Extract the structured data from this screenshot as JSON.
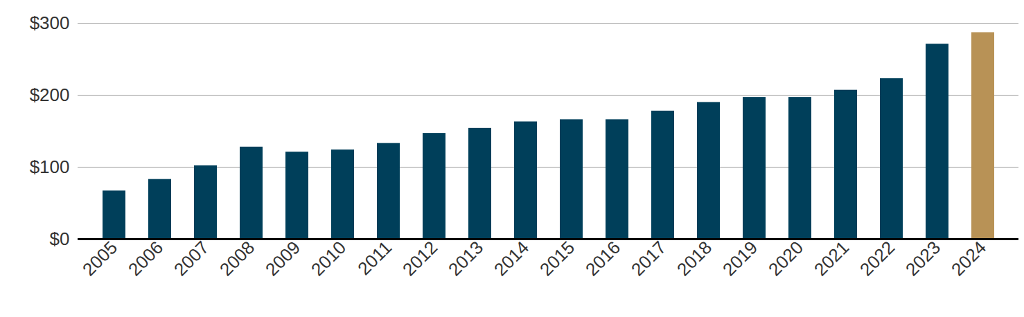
{
  "chart_data": {
    "type": "bar",
    "categories": [
      "2005",
      "2006",
      "2007",
      "2008",
      "2009",
      "2010",
      "2011",
      "2012",
      "2013",
      "2014",
      "2015",
      "2016",
      "2017",
      "2018",
      "2019",
      "2020",
      "2021",
      "2022",
      "2023",
      "2024"
    ],
    "values": [
      67,
      83,
      102,
      128,
      121,
      124,
      133,
      147,
      154,
      163,
      166,
      166,
      178,
      190,
      197,
      197,
      207,
      223,
      271,
      287
    ],
    "colors": [
      "#003f5a",
      "#003f5a",
      "#003f5a",
      "#003f5a",
      "#003f5a",
      "#003f5a",
      "#003f5a",
      "#003f5a",
      "#003f5a",
      "#003f5a",
      "#003f5a",
      "#003f5a",
      "#003f5a",
      "#003f5a",
      "#003f5a",
      "#003f5a",
      "#003f5a",
      "#003f5a",
      "#003f5a",
      "#b89256"
    ],
    "ylim": [
      0,
      300
    ],
    "yticks": [
      {
        "value": 0,
        "label": "$0"
      },
      {
        "value": 100,
        "label": "$100"
      },
      {
        "value": 200,
        "label": "$200"
      },
      {
        "value": 300,
        "label": "$300"
      }
    ],
    "grid": true
  }
}
